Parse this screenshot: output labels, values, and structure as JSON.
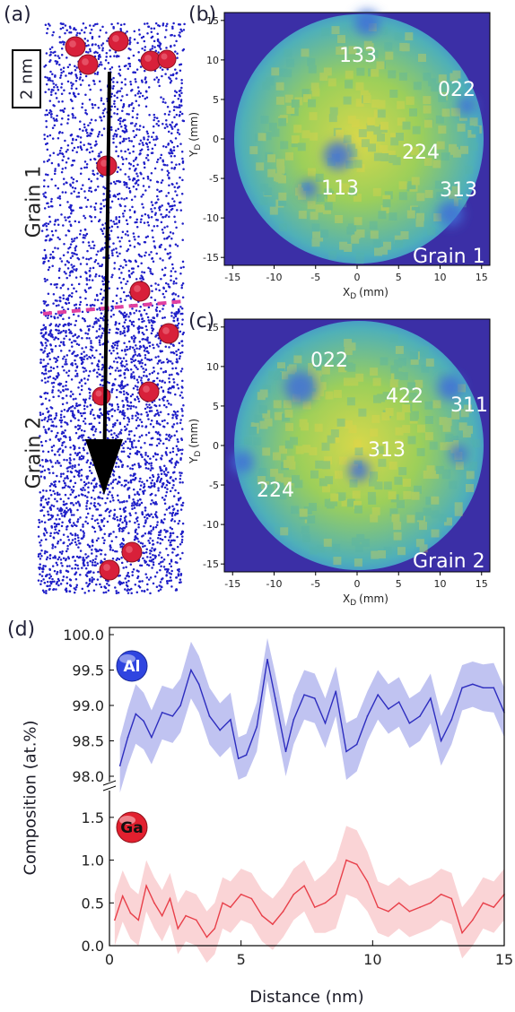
{
  "panels": {
    "a": {
      "label": "(a)",
      "scalebar": "2 nm",
      "grain1": "Grain 1",
      "grain2": "Grain 2"
    },
    "b": {
      "label": "(b)",
      "grain": "Grain 1",
      "poles": [
        {
          "text": "133"
        },
        {
          "text": "022"
        },
        {
          "text": "224"
        },
        {
          "text": "113"
        },
        {
          "text": "313"
        }
      ]
    },
    "c": {
      "label": "(c)",
      "grain": "Grain 2",
      "poles": [
        {
          "text": "022"
        },
        {
          "text": "422"
        },
        {
          "text": "311"
        },
        {
          "text": "313"
        },
        {
          "text": "224"
        }
      ]
    },
    "d": {
      "label": "(d)"
    }
  },
  "detector_axes": {
    "ticks": [
      -15,
      -10,
      -5,
      0,
      5,
      10,
      15
    ],
    "ylabel_base": "Y",
    "ylabel_sub": "D",
    "ylabel_unit": "(mm)",
    "xlabel_base": "X",
    "xlabel_sub": "D",
    "xlabel_unit": "(mm)"
  },
  "colors": {
    "al": "#2d2dbf",
    "al_band": "#b9bdf0",
    "ga": "#e8404a",
    "ga_band": "#f9cfd2",
    "atoms": "#1f1fc8",
    "precipitate": "#d8203a",
    "boundary": "#e040a0"
  },
  "chart_data": {
    "type": "line",
    "xlabel": "Distance (nm)",
    "ylabel": "Composition (at.%)",
    "xlim": [
      0,
      15
    ],
    "xticks": [
      0,
      5,
      10,
      15
    ],
    "panels": [
      {
        "name": "Al",
        "ylim": [
          98.0,
          100.0
        ],
        "yticks": [
          "98.0",
          "98.5",
          "99.0",
          "99.5",
          "100.0"
        ],
        "series": [
          {
            "name": "Al",
            "x": [
              0.4,
              0.7,
              1.0,
              1.3,
              1.6,
              2.0,
              2.4,
              2.7,
              3.1,
              3.4,
              3.8,
              4.2,
              4.6,
              4.9,
              5.2,
              5.6,
              6.0,
              6.3,
              6.7,
              7.0,
              7.4,
              7.8,
              8.2,
              8.6,
              9.0,
              9.4,
              9.8,
              10.2,
              10.6,
              11.0,
              11.4,
              11.8,
              12.2,
              12.6,
              13.0,
              13.4,
              13.8,
              14.2,
              14.6,
              15.0
            ],
            "values": [
              98.15,
              98.55,
              98.88,
              98.78,
              98.55,
              98.9,
              98.85,
              99.0,
              99.5,
              99.3,
              98.85,
              98.65,
              98.8,
              98.25,
              98.3,
              98.7,
              99.65,
              99.1,
              98.35,
              98.8,
              99.15,
              99.1,
              98.75,
              99.2,
              98.35,
              98.45,
              98.85,
              99.15,
              98.95,
              99.05,
              98.75,
              98.85,
              99.1,
              98.5,
              98.8,
              99.25,
              99.3,
              99.25,
              99.25,
              98.9
            ],
            "band": [
              0.38,
              0.4,
              0.42,
              0.4,
              0.38,
              0.38,
              0.38,
              0.38,
              0.4,
              0.4,
              0.4,
              0.38,
              0.38,
              0.3,
              0.3,
              0.35,
              0.3,
              0.35,
              0.35,
              0.35,
              0.35,
              0.35,
              0.35,
              0.35,
              0.4,
              0.38,
              0.35,
              0.35,
              0.35,
              0.35,
              0.35,
              0.35,
              0.35,
              0.35,
              0.35,
              0.32,
              0.32,
              0.33,
              0.35,
              0.35
            ]
          }
        ]
      },
      {
        "name": "Ga",
        "ylim": [
          0.0,
          1.75
        ],
        "yticks": [
          "0.0",
          "0.5",
          "1.0",
          "1.5"
        ],
        "series": [
          {
            "name": "Ga",
            "x": [
              0.2,
              0.5,
              0.8,
              1.1,
              1.4,
              1.7,
              2.0,
              2.3,
              2.6,
              2.9,
              3.3,
              3.7,
              4.0,
              4.3,
              4.6,
              5.0,
              5.4,
              5.8,
              6.2,
              6.6,
              7.0,
              7.4,
              7.8,
              8.2,
              8.6,
              9.0,
              9.4,
              9.8,
              10.2,
              10.6,
              11.0,
              11.4,
              11.8,
              12.2,
              12.6,
              13.0,
              13.4,
              13.8,
              14.2,
              14.6,
              15.0
            ],
            "values": [
              0.3,
              0.58,
              0.38,
              0.3,
              0.7,
              0.5,
              0.35,
              0.55,
              0.2,
              0.35,
              0.3,
              0.1,
              0.2,
              0.5,
              0.45,
              0.6,
              0.55,
              0.35,
              0.25,
              0.4,
              0.6,
              0.7,
              0.45,
              0.5,
              0.6,
              1.0,
              0.95,
              0.75,
              0.45,
              0.4,
              0.5,
              0.4,
              0.45,
              0.5,
              0.6,
              0.55,
              0.15,
              0.3,
              0.5,
              0.45,
              0.6
            ],
            "band": [
              0.3,
              0.3,
              0.3,
              0.3,
              0.3,
              0.3,
              0.3,
              0.3,
              0.3,
              0.3,
              0.3,
              0.3,
              0.3,
              0.3,
              0.3,
              0.3,
              0.3,
              0.3,
              0.3,
              0.3,
              0.3,
              0.3,
              0.3,
              0.35,
              0.4,
              0.4,
              0.4,
              0.35,
              0.3,
              0.3,
              0.3,
              0.3,
              0.3,
              0.3,
              0.3,
              0.3,
              0.3,
              0.3,
              0.3,
              0.3,
              0.3
            ]
          }
        ]
      }
    ]
  }
}
